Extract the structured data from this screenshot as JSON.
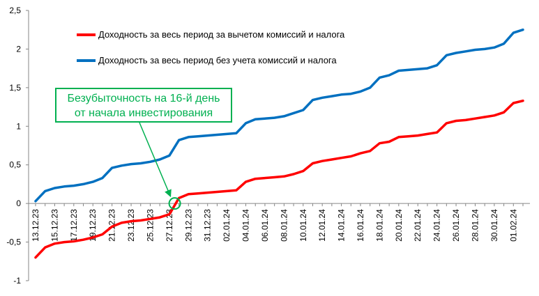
{
  "chart_data": {
    "type": "line",
    "title": "",
    "xlabel": "",
    "ylabel": "",
    "ylim": [
      -1,
      2.5
    ],
    "yticks": [
      "-1",
      "-0,5",
      "0",
      "0,5",
      "1",
      "1,5",
      "2",
      "2,5"
    ],
    "grid": false,
    "legend_position": "top-left",
    "x": [
      "13.12.23",
      "14.12.23",
      "15.12.23",
      "16.12.23",
      "17.12.23",
      "18.12.23",
      "19.12.23",
      "20.12.23",
      "21.12.23",
      "22.12.23",
      "23.12.23",
      "24.12.23",
      "25.12.23",
      "26.12.23",
      "27.12.23",
      "28.12.23",
      "29.12.23",
      "30.12.23",
      "31.12.23",
      "01.01.24",
      "02.01.24",
      "03.01.24",
      "04.01.24",
      "05.01.24",
      "06.01.24",
      "07.01.24",
      "08.01.24",
      "09.01.24",
      "10.01.24",
      "11.01.24",
      "12.01.24",
      "13.01.24",
      "14.01.24",
      "15.01.24",
      "16.01.24",
      "17.01.24",
      "18.01.24",
      "19.01.24",
      "20.01.24",
      "21.01.24",
      "22.01.24",
      "23.01.24",
      "24.01.24",
      "25.01.24",
      "26.01.24",
      "27.01.24",
      "28.01.24",
      "29.01.24",
      "30.01.24",
      "31.01.24",
      "01.02.24",
      "02.02.24"
    ],
    "x_tick_labels": [
      "13.12.23",
      "15.12.23",
      "17.12.23",
      "19.12.23",
      "21.12.23",
      "23.12.23",
      "25.12.23",
      "27.12.23",
      "29.12.23",
      "31.12.23",
      "02.01.24",
      "04.01.24",
      "06.01.24",
      "08.01.24",
      "10.01.24",
      "12.01.24",
      "14.01.24",
      "16.01.24",
      "18.01.24",
      "20.01.24",
      "22.01.24",
      "24.01.24",
      "26.01.24",
      "28.01.24",
      "30.01.24",
      "01.02.24"
    ],
    "series": [
      {
        "name": "Доходность за весь период за вычетом комиссий и налога",
        "color": "#ff0000",
        "values": [
          -0.7,
          -0.57,
          -0.52,
          -0.5,
          -0.49,
          -0.47,
          -0.44,
          -0.4,
          -0.3,
          -0.25,
          -0.23,
          -0.22,
          -0.2,
          -0.18,
          -0.14,
          0.07,
          0.12,
          0.13,
          0.14,
          0.15,
          0.16,
          0.17,
          0.28,
          0.32,
          0.33,
          0.34,
          0.35,
          0.38,
          0.42,
          0.52,
          0.55,
          0.57,
          0.59,
          0.61,
          0.65,
          0.68,
          0.78,
          0.8,
          0.86,
          0.87,
          0.88,
          0.9,
          0.92,
          1.04,
          1.07,
          1.08,
          1.1,
          1.12,
          1.14,
          1.18,
          1.3,
          1.33
        ]
      },
      {
        "name": "Доходность за весь период без учета комиссий и налога",
        "color": "#0070c0",
        "values": [
          0.03,
          0.16,
          0.2,
          0.22,
          0.23,
          0.25,
          0.28,
          0.33,
          0.46,
          0.49,
          0.51,
          0.52,
          0.54,
          0.57,
          0.62,
          0.82,
          0.86,
          0.87,
          0.88,
          0.89,
          0.9,
          0.91,
          1.04,
          1.09,
          1.1,
          1.11,
          1.13,
          1.17,
          1.21,
          1.34,
          1.37,
          1.39,
          1.41,
          1.42,
          1.45,
          1.5,
          1.63,
          1.66,
          1.72,
          1.73,
          1.74,
          1.75,
          1.79,
          1.92,
          1.95,
          1.97,
          1.99,
          2.0,
          2.02,
          2.07,
          2.21,
          2.25
        ]
      }
    ],
    "annotation": {
      "lines": [
        "Безубыточность на 16-й день",
        "от начала инвестирования"
      ],
      "color": "#00b050",
      "target_index": 15,
      "target_value": 0.0
    }
  }
}
